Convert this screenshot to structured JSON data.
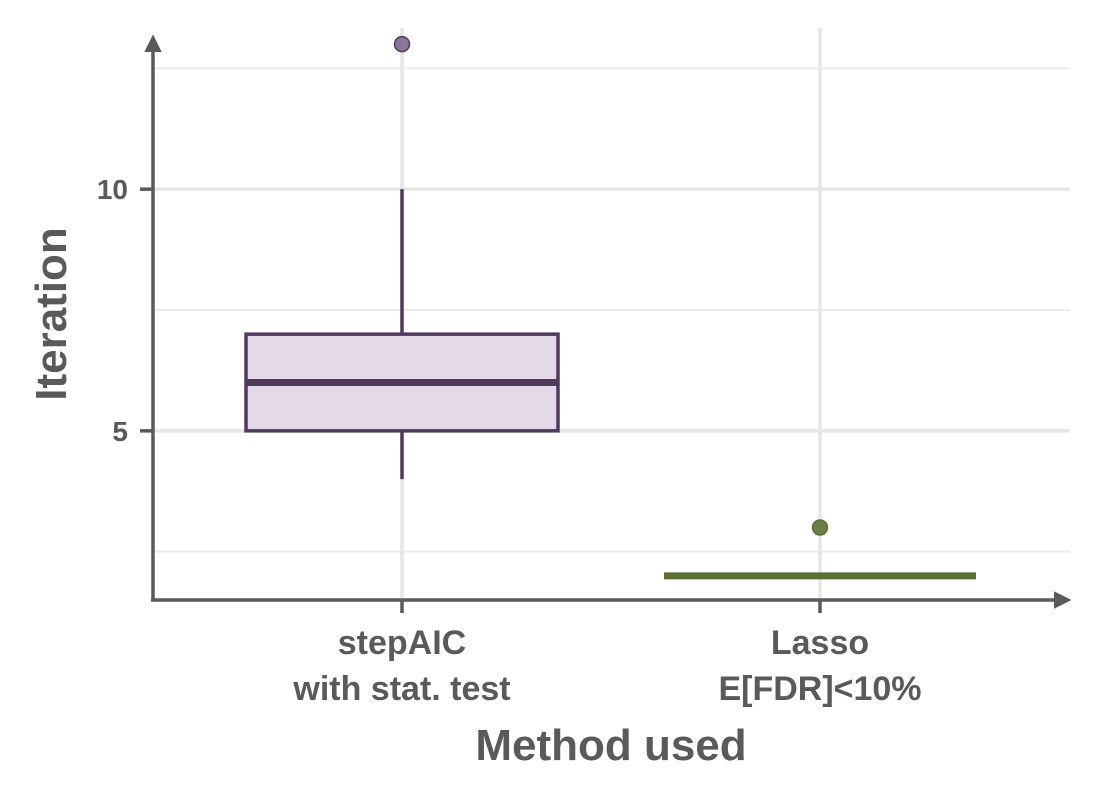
{
  "chart_data": {
    "type": "box",
    "xlabel": "Method used",
    "ylabel": "Iteration",
    "ylim": [
      1.5,
      13.5
    ],
    "y_ticks": [
      5,
      10
    ],
    "y_minor_gridlines": [
      2.5,
      7.5,
      12.5
    ],
    "grid": true,
    "categories": [
      {
        "label_line1": "stepAIC",
        "label_line2": "with stat. test"
      },
      {
        "label_line1": "Lasso",
        "label_line2": "E[FDR]<10%"
      }
    ],
    "boxes": [
      {
        "min": 4,
        "q1": 5,
        "median": 6,
        "q3": 7,
        "max": 10,
        "outliers": [
          13
        ],
        "color": "#523a5e",
        "fill": "#e4d9e8",
        "outlier_color": "#8a7598"
      },
      {
        "min": 2,
        "q1": 2,
        "median": 2,
        "q3": 2,
        "max": 2,
        "outliers": [
          3
        ],
        "color": "#5a7033",
        "fill": "#5a7033",
        "outlier_color": "#6b7f45"
      }
    ]
  }
}
